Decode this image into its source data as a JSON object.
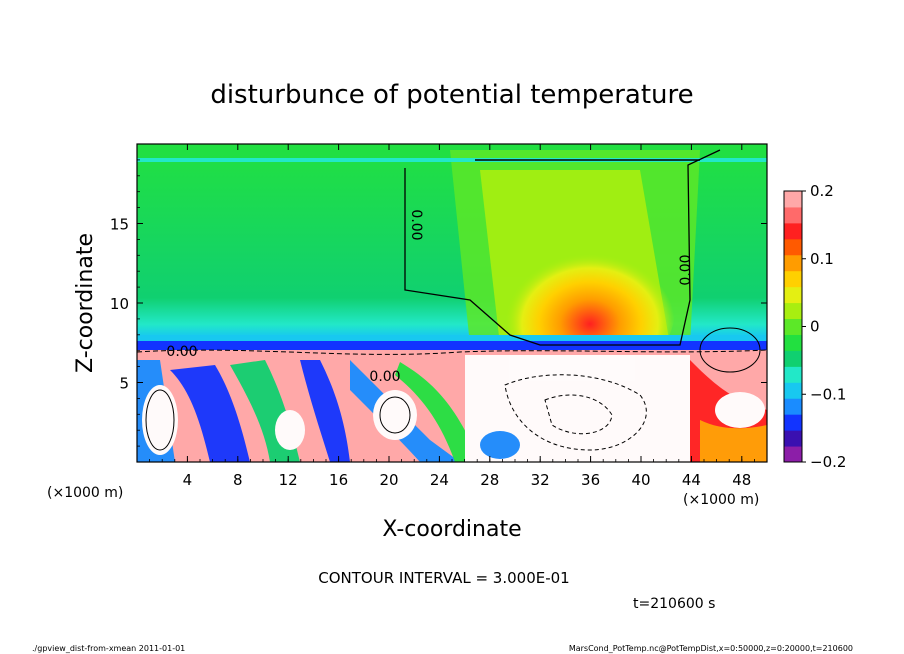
{
  "chart_data": {
    "type": "heatmap",
    "title": "disturbunce of potential temperature",
    "xlabel": "X-coordinate",
    "ylabel": "Z-coordinate",
    "x_unit_left": "(×1000 m)",
    "x_unit_right": "(×1000 m)",
    "xlim": [
      0,
      50
    ],
    "ylim": [
      0,
      20
    ],
    "x_ticks": [
      4,
      8,
      12,
      16,
      20,
      24,
      28,
      32,
      36,
      40,
      44,
      48
    ],
    "y_ticks": [
      5,
      10,
      15
    ],
    "colorbar": {
      "range": [
        -0.2,
        0.2
      ],
      "ticks": [
        "0.2",
        "0.1",
        "0",
        "−0.1",
        "−0.2"
      ],
      "tick_values": [
        0.2,
        0.1,
        0,
        -0.1,
        -0.2
      ],
      "colors": [
        "#8c1ea8",
        "#3a10b0",
        "#1234ff",
        "#1a8cff",
        "#18c8f0",
        "#22e8c8",
        "#10d070",
        "#22e040",
        "#5ce828",
        "#a8ee10",
        "#e4ef12",
        "#ffd000",
        "#ff9c00",
        "#ff5a00",
        "#ff2020",
        "#ff6a6a",
        "#ffa8a8"
      ]
    },
    "contour_labels": [
      "0.00",
      "0.00",
      "0.00",
      "0.00"
    ],
    "contour_interval": "CONTOUR INTERVAL = 3.000E-01",
    "time": "t=210600 s"
  },
  "footer": {
    "left": "./gpview_dist-from-xmean  2011-01-01",
    "right": "MarsCond_PotTemp.nc@PotTempDist,x=0:50000,z=0:20000,t=210600"
  }
}
